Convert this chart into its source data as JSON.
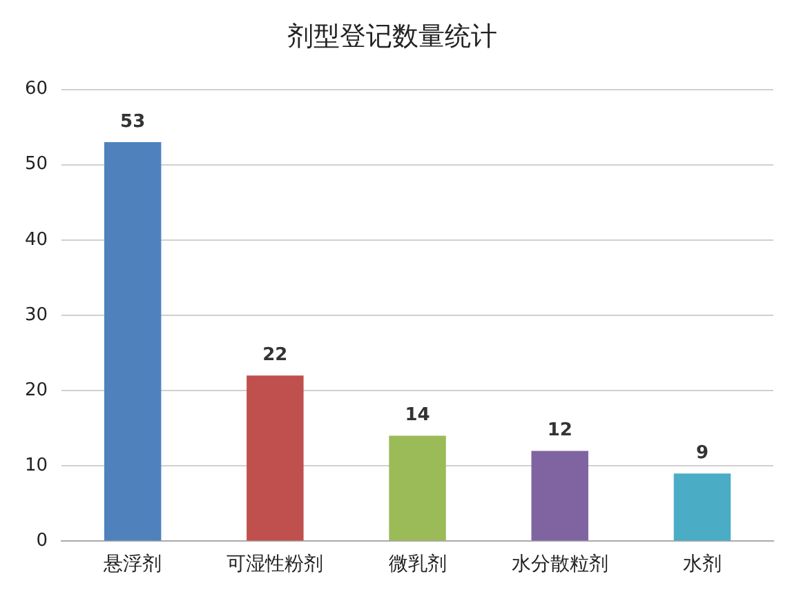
{
  "chart_data": {
    "type": "bar",
    "title": "剂型登记数量统计",
    "categories": [
      "悬浮剂",
      "可湿性粉剂",
      "微乳剂",
      "水分散粒剂",
      "水剂"
    ],
    "values": [
      53,
      22,
      14,
      12,
      9
    ],
    "colors": [
      "#4f81bd",
      "#c0504d",
      "#9bbb59",
      "#8064a2",
      "#4bacc6"
    ],
    "ylim": [
      0,
      60
    ],
    "yticks": [
      0,
      10,
      20,
      30,
      40,
      50,
      60
    ],
    "grid": "y",
    "data_labels": true,
    "legend": false
  }
}
